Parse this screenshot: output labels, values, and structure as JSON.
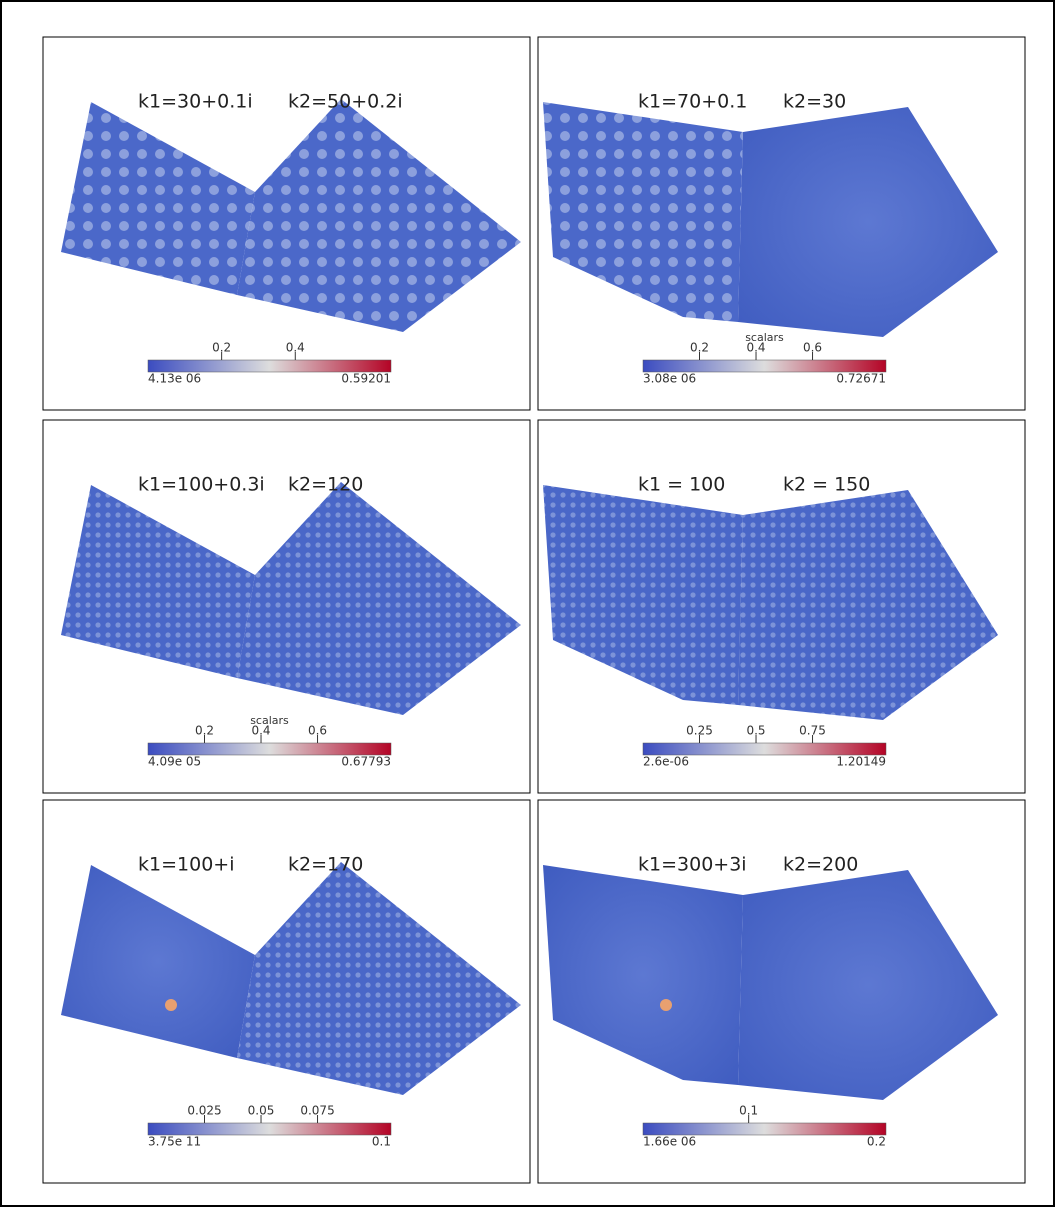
{
  "panels": [
    {
      "k1": "k1=30+0.1i",
      "k2": "k2=50+0.2i",
      "colorbar": {
        "ticks": [
          "0.2",
          "0.4"
        ],
        "min": "4.13e 06",
        "max": "0.59201"
      }
    },
    {
      "k1": "k1=70+0.1",
      "k2": "k2=30",
      "colorbar": {
        "title": "scalars",
        "ticks": [
          "0.2",
          "0.4",
          "0.6"
        ],
        "min": "3.08e 06",
        "max": "0.72671"
      }
    },
    {
      "k1": "k1=100+0.3i",
      "k2": "k2=120",
      "colorbar": {
        "title": "scalars",
        "ticks": [
          "0.2",
          "0.4",
          "0.6"
        ],
        "min": "4.09e 05",
        "max": "0.67793"
      }
    },
    {
      "k1": "k1 = 100",
      "k2": "k2 = 150",
      "colorbar": {
        "ticks": [
          "0.25",
          "0.5",
          "0.75"
        ],
        "min": "2.6e-06",
        "max": "1.20149"
      }
    },
    {
      "k1": "k1=100+i",
      "k2": "k2=170",
      "colorbar": {
        "ticks": [
          "0.025",
          "0.05",
          "0.075"
        ],
        "min": "3.75e 11",
        "max": "0.1"
      }
    },
    {
      "k1": "k1=300+3i",
      "k2": "k2=200",
      "colorbar": {
        "ticks": [
          "0.1"
        ],
        "min": "1.66e 06",
        "max": "0.2"
      }
    }
  ]
}
